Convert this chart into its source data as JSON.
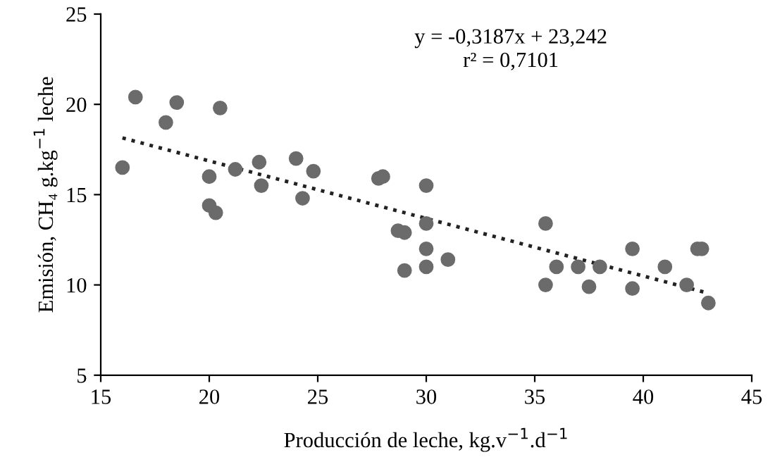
{
  "chart_data": {
    "type": "scatter",
    "xlabel": "Producción de leche, kg.v$^{−1}$.d$^{−1}$",
    "ylabel": "Emisión, CH₄ g.kg$^{−1}$ leche",
    "annotations": [
      "y = -0,3187x + 23,242",
      "r² = 0,7101"
    ],
    "xlim": [
      15,
      45
    ],
    "xticks": [
      15,
      20,
      25,
      30,
      35,
      40,
      45
    ],
    "ylim": [
      5,
      25
    ],
    "yticks": [
      5,
      10,
      15,
      20,
      25
    ],
    "grid": false,
    "marker": "circle",
    "series": [
      {
        "color": "#6b6b6b",
        "x": [
          16,
          16.6,
          18,
          18.5,
          20,
          20,
          20.3,
          20.5,
          21.2,
          22.3,
          22.4,
          24,
          24.3,
          24.8,
          27.8,
          28,
          28.7,
          29,
          29,
          30,
          30,
          30,
          30,
          31,
          35.5,
          35.5,
          36,
          37,
          37.5,
          38,
          39.5,
          39.5,
          41,
          42,
          42.5,
          42.7,
          43
        ],
        "values": [
          16.5,
          20.4,
          19,
          20.1,
          16,
          14.4,
          14,
          19.8,
          16.4,
          16.8,
          15.5,
          17,
          14.8,
          16.3,
          15.9,
          16,
          13,
          12.9,
          10.8,
          15.5,
          13.4,
          12,
          11,
          11.4,
          13.4,
          10,
          11,
          11,
          9.9,
          11,
          12,
          9.8,
          11,
          10,
          12,
          12,
          9
        ]
      },
      {
        "type": "line",
        "color": "#222222",
        "line_style": "dotted",
        "marker": "none",
        "x": [
          16,
          43
        ],
        "values": [
          18.14,
          9.54
        ]
      }
    ]
  }
}
